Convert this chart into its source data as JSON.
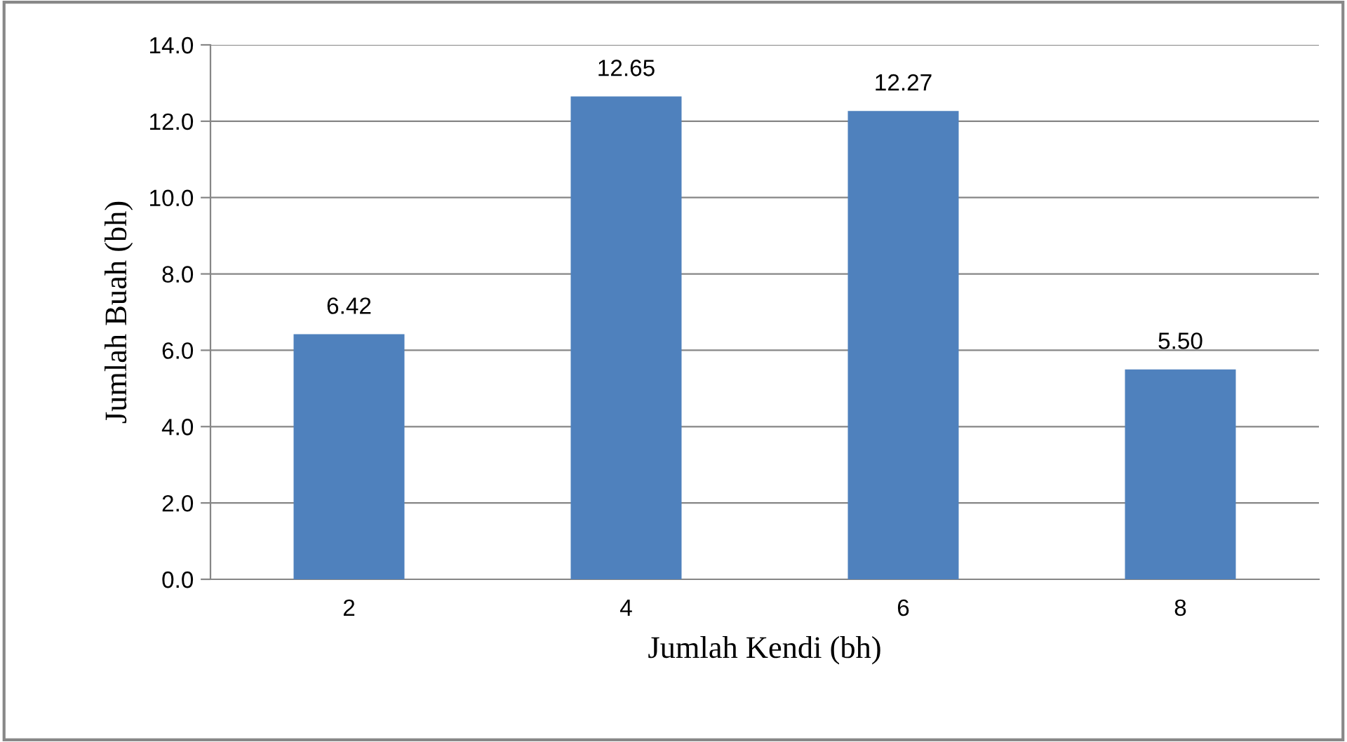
{
  "chart_data": {
    "type": "bar",
    "xlabel": "Jumlah Kendi (bh)",
    "ylabel": "Jumlah Buah (bh)",
    "categories": [
      "2",
      "4",
      "6",
      "8"
    ],
    "values": [
      6.42,
      12.65,
      12.27,
      5.5
    ],
    "value_labels": [
      "6.42",
      "12.65",
      "12.27",
      "5.50"
    ],
    "color": "#4f81bd",
    "ylim": [
      0,
      14
    ],
    "yticks": [
      {
        "value": 0,
        "label": "0.0"
      },
      {
        "value": 2,
        "label": "2.0"
      },
      {
        "value": 4,
        "label": "4.0"
      },
      {
        "value": 6,
        "label": "6.0"
      },
      {
        "value": 8,
        "label": "8.0"
      },
      {
        "value": 10,
        "label": "10.0"
      },
      {
        "value": 12,
        "label": "12.0"
      },
      {
        "value": 14,
        "label": "14.0"
      }
    ],
    "grid": "y",
    "legend": false
  }
}
